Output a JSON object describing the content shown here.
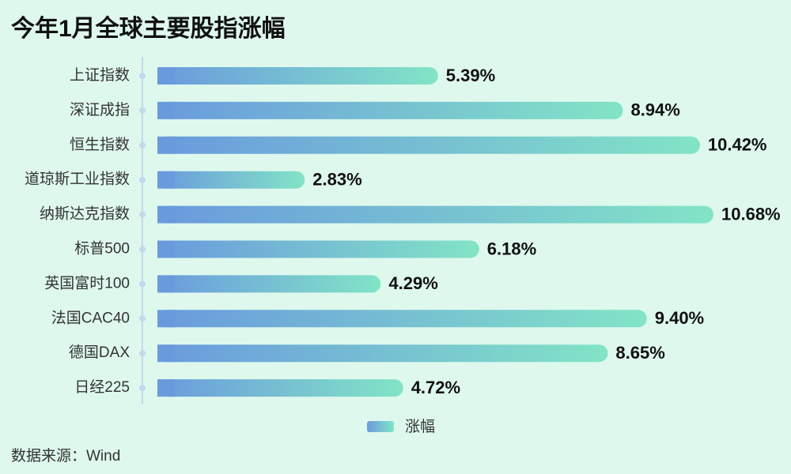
{
  "chart_data": {
    "type": "bar",
    "orientation": "horizontal",
    "title": "今年1月全球主要股指涨幅",
    "source": "数据来源：Wind",
    "categories": [
      "上证指数",
      "深证成指",
      "恒生指数",
      "道琼斯工业指数",
      "纳斯达克指数",
      "标普500",
      "英国富时100",
      "法国CAC40",
      "德国DAX",
      "日经225"
    ],
    "series": [
      {
        "name": "涨幅",
        "colors": [
          "#6a9ade",
          "#82e4c6"
        ],
        "values": [
          5.39,
          8.94,
          10.42,
          2.83,
          10.68,
          6.18,
          4.29,
          9.4,
          8.65,
          4.72
        ],
        "value_labels": [
          "5.39%",
          "8.94%",
          "10.42%",
          "2.83%",
          "10.68%",
          "6.18%",
          "4.29%",
          "9.40%",
          "8.65%",
          "4.72%"
        ]
      }
    ],
    "legend": "bottom"
  }
}
